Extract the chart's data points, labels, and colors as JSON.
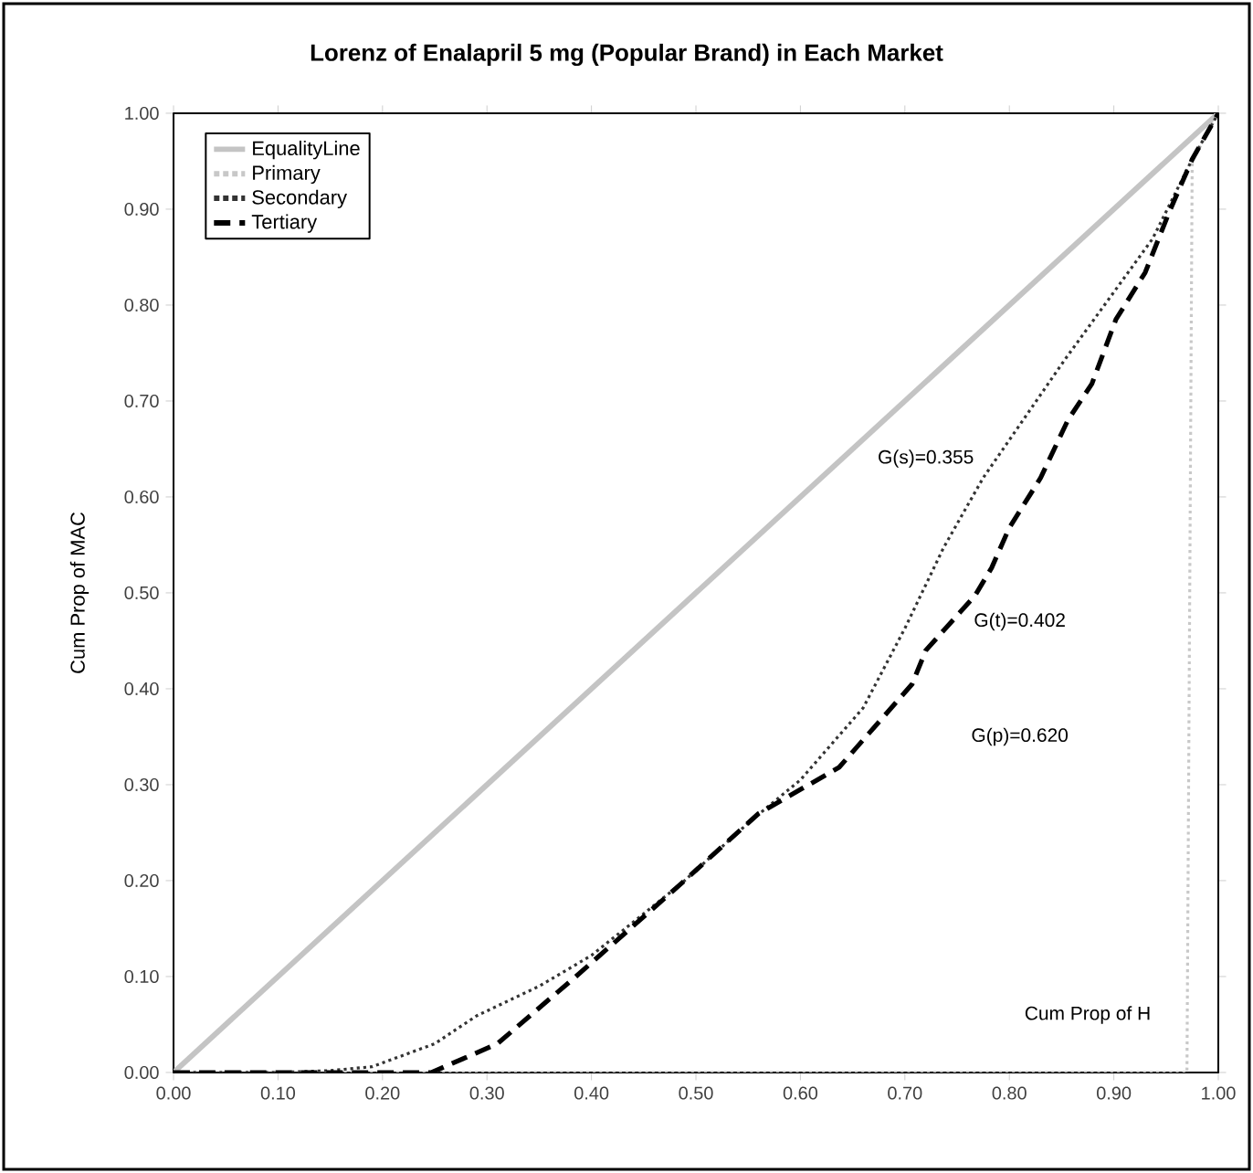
{
  "chart_data": {
    "type": "line",
    "title": "Lorenz of Enalapril 5 mg (Popular Brand) in Each Market",
    "xlabel": "Cum Prop of H",
    "ylabel": "Cum Prop of MAC",
    "xlim": [
      0,
      1
    ],
    "ylim": [
      0,
      1
    ],
    "xticks": [
      {
        "value": 0,
        "label": "0.00"
      },
      {
        "value": 0.1,
        "label": "0.10"
      },
      {
        "value": 0.2,
        "label": "0.20"
      },
      {
        "value": 0.3,
        "label": "0.30"
      },
      {
        "value": 0.4,
        "label": "0.40"
      },
      {
        "value": 0.5,
        "label": "0.50"
      },
      {
        "value": 0.6,
        "label": "0.60"
      },
      {
        "value": 0.7,
        "label": "0.70"
      },
      {
        "value": 0.8,
        "label": "0.80"
      },
      {
        "value": 0.9,
        "label": "0.90"
      },
      {
        "value": 1,
        "label": "1.00"
      }
    ],
    "yticks": [
      {
        "value": 0,
        "label": "0.00"
      },
      {
        "value": 0.1,
        "label": "0.10"
      },
      {
        "value": 0.2,
        "label": "0.20"
      },
      {
        "value": 0.3,
        "label": "0.30"
      },
      {
        "value": 0.4,
        "label": "0.40"
      },
      {
        "value": 0.5,
        "label": "0.50"
      },
      {
        "value": 0.6,
        "label": "0.60"
      },
      {
        "value": 0.7,
        "label": "0.70"
      },
      {
        "value": 0.8,
        "label": "0.80"
      },
      {
        "value": 0.9,
        "label": "0.90"
      },
      {
        "value": 1,
        "label": "1.00"
      }
    ],
    "legend": "top left",
    "marker": "none",
    "series": [
      {
        "name": "EqualityLine",
        "color": "#c4c4c4",
        "line_style": "solid",
        "x": [
          0,
          1
        ],
        "values": [
          0,
          1
        ]
      },
      {
        "name": "Primary",
        "color": "#c8c8c8",
        "line_style": "dotted",
        "x": [
          0,
          0.97,
          0.975,
          1
        ],
        "values": [
          0,
          0,
          0.95,
          1
        ]
      },
      {
        "name": "Secondary",
        "color": "#333333",
        "line_style": "dotted",
        "x": [
          0,
          0.1,
          0.15,
          0.19,
          0.25,
          0.29,
          0.35,
          0.4,
          0.485,
          0.55,
          0.6,
          0.66,
          0.7,
          0.737,
          0.775,
          0.853,
          0.891,
          0.937,
          0.975,
          1
        ],
        "values": [
          0,
          0,
          0.002,
          0.006,
          0.03,
          0.059,
          0.09,
          0.122,
          0.196,
          0.26,
          0.305,
          0.38,
          0.463,
          0.547,
          0.62,
          0.743,
          0.8,
          0.869,
          0.952,
          1
        ]
      },
      {
        "name": "Tertiary",
        "color": "#000000",
        "line_style": "dashed",
        "x": [
          0,
          0.247,
          0.31,
          0.385,
          0.485,
          0.56,
          0.637,
          0.707,
          0.72,
          0.767,
          0.783,
          0.8,
          0.83,
          0.856,
          0.879,
          0.902,
          0.93,
          0.953,
          0.975,
          1
        ],
        "values": [
          0,
          0,
          0.03,
          0.1,
          0.196,
          0.27,
          0.318,
          0.405,
          0.44,
          0.497,
          0.526,
          0.568,
          0.62,
          0.68,
          0.718,
          0.785,
          0.834,
          0.897,
          0.952,
          1
        ]
      }
    ],
    "annotations": [
      "G(s)=0.355",
      "G(t)=0.402",
      "G(p)=0.620"
    ]
  }
}
